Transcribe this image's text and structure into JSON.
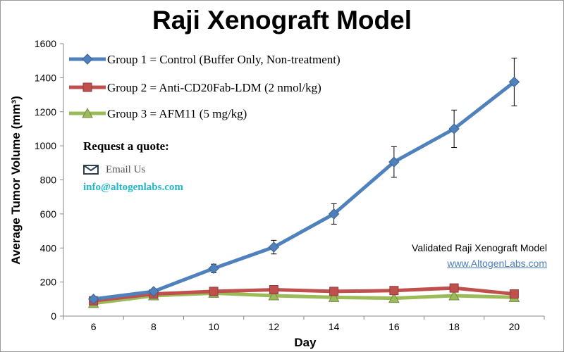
{
  "title": "Raji Xenograft Model",
  "chart_data": {
    "type": "line",
    "title": "Raji Xenograft Model",
    "xlabel": "Day",
    "ylabel": "Average Tumor Volume (mm³)",
    "x": [
      6,
      8,
      10,
      12,
      14,
      16,
      18,
      20
    ],
    "xlim": [
      5,
      21
    ],
    "ylim": [
      0,
      1600
    ],
    "yticks": [
      0,
      200,
      400,
      600,
      800,
      1000,
      1200,
      1400,
      1600
    ],
    "xticks": [
      6,
      8,
      10,
      12,
      14,
      16,
      18,
      20
    ],
    "grid": false,
    "legend_position": "top-left",
    "series": [
      {
        "name": "Group 1 = Control (Buffer Only, Non-treatment)",
        "marker": "diamond",
        "color": "#4f81bd",
        "values": [
          100,
          145,
          280,
          405,
          600,
          905,
          1100,
          1375
        ],
        "errors": [
          0,
          0,
          25,
          40,
          60,
          90,
          110,
          140
        ]
      },
      {
        "name": "Group 2 = Anti-CD20Fab-LDM (2 nmol/kg)",
        "marker": "square",
        "color": "#c0504d",
        "values": [
          90,
          130,
          145,
          155,
          145,
          150,
          165,
          130
        ],
        "errors": []
      },
      {
        "name": "Group 3 = AFM11 (5 mg/kg)",
        "marker": "triangle",
        "color": "#9bbb59",
        "values": [
          75,
          120,
          135,
          120,
          110,
          105,
          120,
          110
        ],
        "errors": []
      }
    ]
  },
  "quote": {
    "heading": "Request a quote:",
    "email_label": "Email Us",
    "email_address": "info@altogenlabs.com"
  },
  "footer": {
    "validated": "Validated Raji Xenograft Model",
    "website": "www.AltogenLabs.com"
  },
  "colors": {
    "axis": "#888888",
    "email_accent": "#22b8c9",
    "link": "#4a7fbf"
  }
}
